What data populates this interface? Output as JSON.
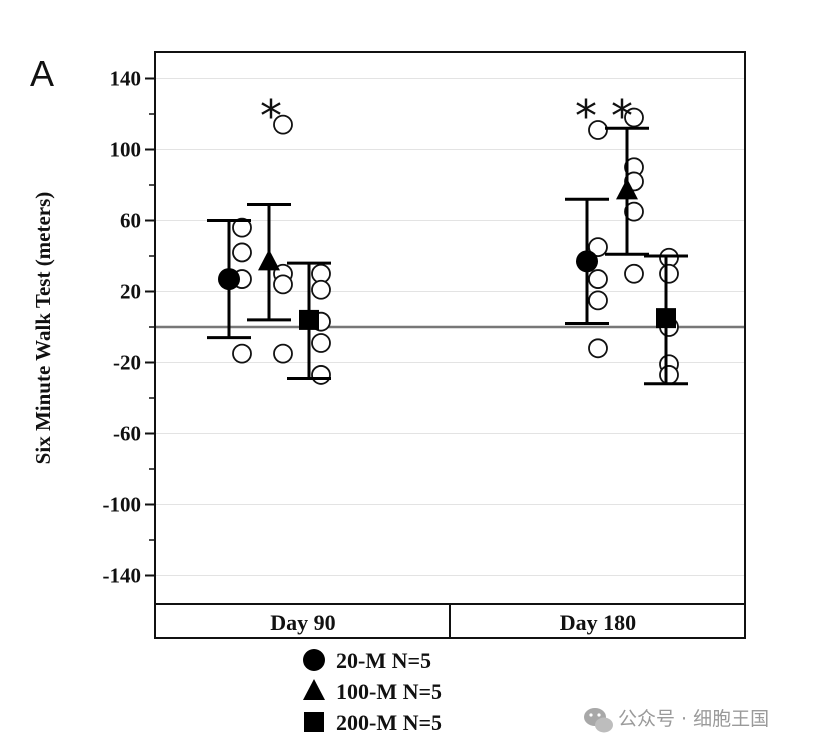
{
  "panel_label": "A",
  "watermark": "公众号 · 细胞王国",
  "chart_data": {
    "type": "scatter",
    "ylabel": "Six Minute Walk Test (meters)",
    "ylim": [
      -160,
      160
    ],
    "yticks": [
      140,
      100,
      60,
      20,
      -20,
      -60,
      -100,
      -140
    ],
    "ytick_labels": [
      "140",
      "100",
      "60",
      "20",
      "-20",
      "-60",
      "-100",
      "-140"
    ],
    "grid": true,
    "reference_line": 0,
    "categories": [
      "Day 90",
      "Day 180"
    ],
    "legend_position": "bottom",
    "series": [
      {
        "name": "20-M N=5",
        "marker": "circle",
        "points": {
          "Day 90": {
            "mean": 27,
            "upper": 60,
            "lower": -6,
            "individual": [
              56,
              42,
              27,
              -15
            ],
            "significance": ""
          },
          "Day 180": {
            "mean": 37,
            "upper": 72,
            "lower": 2,
            "individual": [
              111,
              45,
              27,
              15,
              -12
            ],
            "significance": "*"
          }
        }
      },
      {
        "name": "100-M N=5",
        "marker": "triangle",
        "points": {
          "Day 90": {
            "mean": 37,
            "upper": 69,
            "lower": 4,
            "individual": [
              114,
              30,
              24,
              -15
            ],
            "significance": "*"
          },
          "Day 180": {
            "mean": 77,
            "upper": 112,
            "lower": 41,
            "individual": [
              118,
              90,
              82,
              65,
              30
            ],
            "significance": "*"
          }
        }
      },
      {
        "name": "200-M N=5",
        "marker": "square",
        "points": {
          "Day 90": {
            "mean": 4,
            "upper": 36,
            "lower": -29,
            "individual": [
              30,
              21,
              3,
              -9,
              -27
            ],
            "significance": ""
          },
          "Day 180": {
            "mean": 5,
            "upper": 40,
            "lower": -32,
            "individual": [
              39,
              30,
              0,
              -21,
              -27
            ],
            "significance": ""
          }
        }
      }
    ]
  }
}
